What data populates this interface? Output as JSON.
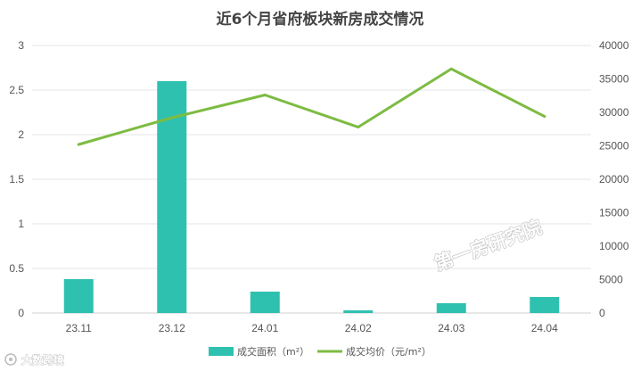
{
  "chart_data": {
    "type": "bar+line",
    "title": "近6个月省府板块新房成交情况",
    "categories": [
      "23.11",
      "23.12",
      "24.01",
      "24.02",
      "24.03",
      "24.04"
    ],
    "series": [
      {
        "name": "成交面积（m²）",
        "type": "bar",
        "axis": "left",
        "values": [
          0.38,
          2.6,
          0.24,
          0.03,
          0.11,
          0.18
        ],
        "color": "#2fc1b0"
      },
      {
        "name": "成交均价（元/m²）",
        "type": "line",
        "axis": "right",
        "values": [
          25200,
          29200,
          32600,
          27800,
          36500,
          29400
        ],
        "color": "#7dbb42"
      }
    ],
    "y_left": {
      "min": 0,
      "max": 3,
      "ticks": [
        "0",
        "0.5",
        "1",
        "1.5",
        "2",
        "2.5",
        "3"
      ]
    },
    "y_right": {
      "min": 0,
      "max": 40000,
      "ticks": [
        "0",
        "5000",
        "10000",
        "15000",
        "20000",
        "25000",
        "30000",
        "35000",
        "40000"
      ]
    },
    "grid": true,
    "legend_position": "bottom"
  },
  "watermark": {
    "main": "第一房研究院",
    "corner": "大数跨境"
  }
}
